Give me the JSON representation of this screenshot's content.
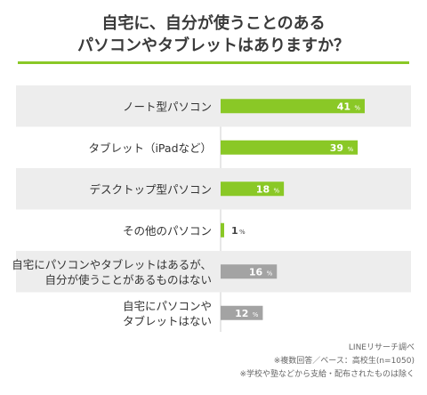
{
  "title_lines": [
    "自宅に、自分が使うことのある",
    "パソコンやタブレットはありますか？"
  ],
  "colors": {
    "accent_green": "#8ac826",
    "gray_bar": "#a3a3a3",
    "row_shade": "#ededed",
    "label_text": "#333333"
  },
  "chart_data": {
    "type": "bar",
    "orientation": "horizontal",
    "unit": "%",
    "categories": [
      [
        "ノート型パソコン"
      ],
      [
        "タブレット（iPadなど）"
      ],
      [
        "デスクトップ型パソコン"
      ],
      [
        "その他のパソコン"
      ],
      [
        "自宅にパソコンやタブレットはあるが、",
        "自分が使うことがあるものはない"
      ],
      [
        "自宅にパソコンや",
        "タブレットはない"
      ]
    ],
    "values": [
      41,
      39,
      18,
      1,
      16,
      12
    ],
    "bar_colors": [
      "green",
      "green",
      "green",
      "green",
      "gray",
      "gray"
    ],
    "xlim": [
      0,
      41
    ]
  },
  "footer": {
    "source": "LINEリサーチ調べ",
    "note1": "※複数回答／ベース：高校生(n=1050)",
    "note2": "※学校や塾などから支給・配布されたものは除く"
  }
}
